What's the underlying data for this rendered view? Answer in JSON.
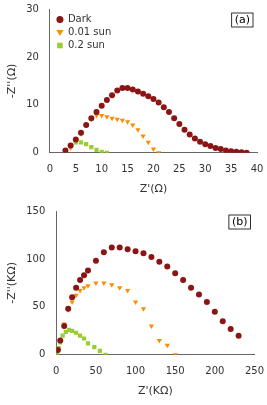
{
  "chart_data": [
    {
      "type": "scatter",
      "xlabel": "Z'(Ω)",
      "ylabel": "-Z''(Ω)",
      "xlim": [
        0,
        40
      ],
      "ylim": [
        0,
        30
      ],
      "xticks": [
        0,
        5,
        10,
        15,
        20,
        25,
        30,
        35,
        40
      ],
      "yticks": [
        0,
        10,
        20,
        30
      ],
      "grid": false,
      "legend": "upper left",
      "annotations": [
        "(a)"
      ],
      "series": [
        {
          "name": "Dark",
          "color": "#8B1515",
          "marker": "circle",
          "x": [
            3,
            4,
            5,
            6,
            7,
            8,
            9,
            10,
            11,
            12,
            13,
            14,
            15,
            16,
            17,
            18,
            19,
            20,
            21,
            22,
            23,
            24,
            25,
            26,
            27,
            28,
            29,
            30,
            31,
            32,
            33,
            34,
            35,
            36,
            37,
            38
          ],
          "values": [
            0.5,
            1.5,
            2.8,
            4.2,
            5.8,
            7.2,
            8.5,
            9.8,
            11.0,
            12.0,
            13.0,
            13.5,
            13.5,
            13.2,
            12.8,
            12.3,
            11.8,
            11.2,
            10.5,
            9.5,
            8.5,
            7.2,
            6.0,
            4.8,
            3.8,
            3.0,
            2.3,
            1.8,
            1.4,
            1.0,
            0.8,
            0.5,
            0.3,
            0.2,
            0.1,
            0.0
          ]
        },
        {
          "name": "0.01 sun",
          "color": "#FF8C00",
          "marker": "triangle_down",
          "x": [
            4,
            5,
            6,
            7,
            8,
            9,
            10,
            11,
            12,
            13,
            14,
            15,
            16,
            17,
            18,
            19,
            20,
            21
          ],
          "values": [
            1.0,
            2.5,
            4.0,
            5.8,
            7.0,
            7.8,
            7.8,
            7.5,
            7.2,
            7.0,
            6.8,
            6.5,
            5.8,
            4.8,
            3.5,
            2.2,
            0.8,
            0.0
          ]
        },
        {
          "name": "0.2 sun",
          "color": "#9ACD32",
          "marker": "square",
          "x": [
            3,
            4,
            5,
            6,
            7,
            8,
            9,
            10,
            11
          ],
          "values": [
            0.5,
            1.5,
            2.2,
            2.2,
            1.8,
            1.2,
            0.6,
            0.2,
            0.0
          ]
        }
      ]
    },
    {
      "type": "scatter",
      "xlabel": "Z'(KΩ)",
      "ylabel": "-Z''(KΩ)",
      "xlim": [
        0,
        250
      ],
      "ylim": [
        0,
        150
      ],
      "xticks": [
        0,
        50,
        100,
        150,
        200,
        250
      ],
      "yticks": [
        0,
        50,
        100,
        150
      ],
      "grid": false,
      "annotations": [
        "(b)"
      ],
      "series": [
        {
          "name": "Dark",
          "color": "#8B1515",
          "marker": "circle",
          "x": [
            2,
            5,
            10,
            15,
            20,
            25,
            30,
            35,
            40,
            50,
            60,
            70,
            80,
            90,
            100,
            110,
            120,
            130,
            140,
            150,
            160,
            170,
            180,
            190,
            200,
            210,
            220,
            230
          ],
          "values": [
            5,
            15,
            30,
            48,
            60,
            70,
            78,
            83,
            88,
            98,
            107,
            112,
            112,
            110,
            108,
            106,
            102,
            97,
            92,
            85,
            78,
            70,
            63,
            55,
            45,
            35,
            27,
            20
          ]
        },
        {
          "name": "0.01 sun",
          "color": "#FF8C00",
          "marker": "triangle_down",
          "x": [
            2,
            5,
            10,
            15,
            20,
            25,
            30,
            35,
            40,
            50,
            60,
            70,
            80,
            90,
            100,
            110,
            120,
            130,
            140,
            150
          ],
          "values": [
            5,
            15,
            32,
            47,
            55,
            62,
            67,
            70,
            72,
            75,
            75,
            73,
            70,
            67,
            55,
            48,
            30,
            15,
            10,
            0
          ]
        },
        {
          "name": "0.2 sun",
          "color": "#9ACD32",
          "marker": "square",
          "x": [
            1,
            3,
            5,
            8,
            12,
            16,
            20,
            25,
            30,
            35,
            40,
            48,
            55,
            62
          ],
          "values": [
            2,
            7,
            13,
            20,
            24,
            26,
            25,
            23,
            20,
            17,
            12,
            8,
            4,
            0
          ]
        }
      ]
    }
  ]
}
